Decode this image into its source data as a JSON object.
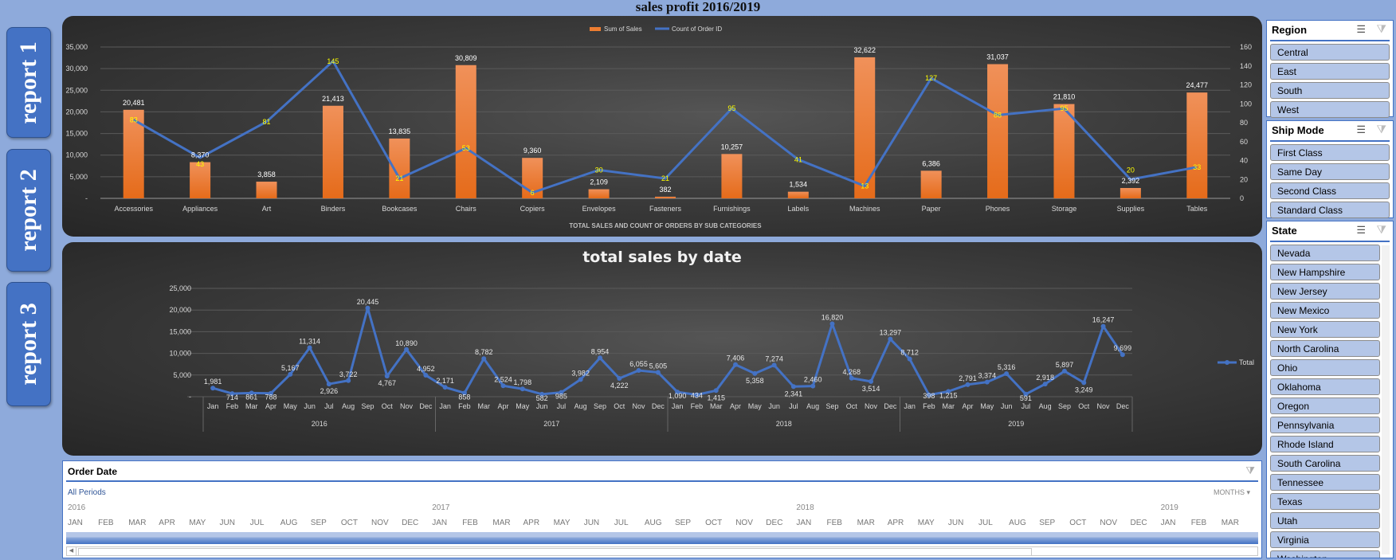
{
  "title": "sales profit 2016/2019",
  "reports": [
    "report 1",
    "report 2",
    "report 3"
  ],
  "colors": {
    "background": "#8eaadb",
    "bar": "#ed7d31",
    "line": "#4472c4",
    "count_label": "#ffff00",
    "button": "#4472c4",
    "slicer_item": "#b4c6e7"
  },
  "chart_data": [
    {
      "type": "bar+line",
      "title": "",
      "xlabel": "TOTAL SALES AND COUNT OF ORDERS BY SUB CATEGORIES",
      "categories": [
        "Accessories",
        "Appliances",
        "Art",
        "Binders",
        "Bookcases",
        "Chairs",
        "Copiers",
        "Envelopes",
        "Fasteners",
        "Furnishings",
        "Labels",
        "Machines",
        "Paper",
        "Phones",
        "Storage",
        "Supplies",
        "Tables"
      ],
      "series": [
        {
          "name": "Sum of Sales",
          "type": "bar",
          "axis": "left",
          "values": [
            20481,
            8370,
            3858,
            21413,
            13835,
            30809,
            9360,
            2109,
            382,
            10257,
            1534,
            32622,
            6386,
            31037,
            21810,
            2392,
            24477
          ]
        },
        {
          "name": "Count of Order ID",
          "type": "line",
          "axis": "right",
          "values": [
            83,
            43,
            81,
            145,
            21,
            53,
            6,
            30,
            21,
            95,
            41,
            13,
            127,
            88,
            95,
            20,
            33
          ]
        }
      ],
      "ylim_left": [
        0,
        35000
      ],
      "ylim_right": [
        0,
        160
      ],
      "left_ticks": [
        "-",
        "5,000",
        "10,000",
        "15,000",
        "20,000",
        "25,000",
        "30,000",
        "35,000"
      ],
      "right_ticks": [
        "0",
        "20",
        "40",
        "60",
        "80",
        "100",
        "120",
        "140",
        "160"
      ],
      "legend": "top-center",
      "grid": true
    },
    {
      "type": "line",
      "title": "total sales by date",
      "years": [
        "2016",
        "2017",
        "2018",
        "2019"
      ],
      "months": [
        "Jan",
        "Feb",
        "Mar",
        "Apr",
        "May",
        "Jun",
        "Jul",
        "Aug",
        "Sep",
        "Oct",
        "Nov",
        "Dec"
      ],
      "series": [
        {
          "name": "Total",
          "values": [
            1981,
            714,
            861,
            788,
            5167,
            11314,
            2926,
            3722,
            20445,
            4767,
            10890,
            4952,
            2171,
            858,
            8782,
            2524,
            1798,
            582,
            985,
            3982,
            8954,
            4222,
            6055,
            5605,
            1090,
            434,
            1415,
            7406,
            5358,
            7274,
            2341,
            2460,
            16820,
            4268,
            3514,
            13297,
            8712,
            398,
            1215,
            2791,
            3374,
            5316,
            591,
            2918,
            5897,
            3249,
            16247,
            9699
          ]
        }
      ],
      "ylim": [
        0,
        25000
      ],
      "y_ticks": [
        "-",
        "5,000",
        "10,000",
        "15,000",
        "20,000",
        "25,000"
      ],
      "legend": "right",
      "grid": true
    }
  ],
  "slicers": {
    "region": {
      "title": "Region",
      "items": [
        "Central",
        "East",
        "South",
        "West"
      ]
    },
    "ship_mode": {
      "title": "Ship Mode",
      "items": [
        "First Class",
        "Same Day",
        "Second Class",
        "Standard Class"
      ]
    },
    "state": {
      "title": "State",
      "items": [
        "Nevada",
        "New Hampshire",
        "New Jersey",
        "New Mexico",
        "New York",
        "North Carolina",
        "Ohio",
        "Oklahoma",
        "Oregon",
        "Pennsylvania",
        "Rhode Island",
        "South Carolina",
        "Tennessee",
        "Texas",
        "Utah",
        "Virginia",
        "Washington"
      ]
    }
  },
  "timeline": {
    "title": "Order Date",
    "selection": "All Periods",
    "level": "MONTHS",
    "years": [
      "2016",
      "2017",
      "2018",
      "2019"
    ],
    "months": [
      "JAN",
      "FEB",
      "MAR",
      "APR",
      "MAY",
      "JUN",
      "JUL",
      "AUG",
      "SEP",
      "OCT",
      "NOV",
      "DEC"
    ],
    "visible_months_last_year": [
      "JAN",
      "FEB",
      "MAR"
    ]
  }
}
